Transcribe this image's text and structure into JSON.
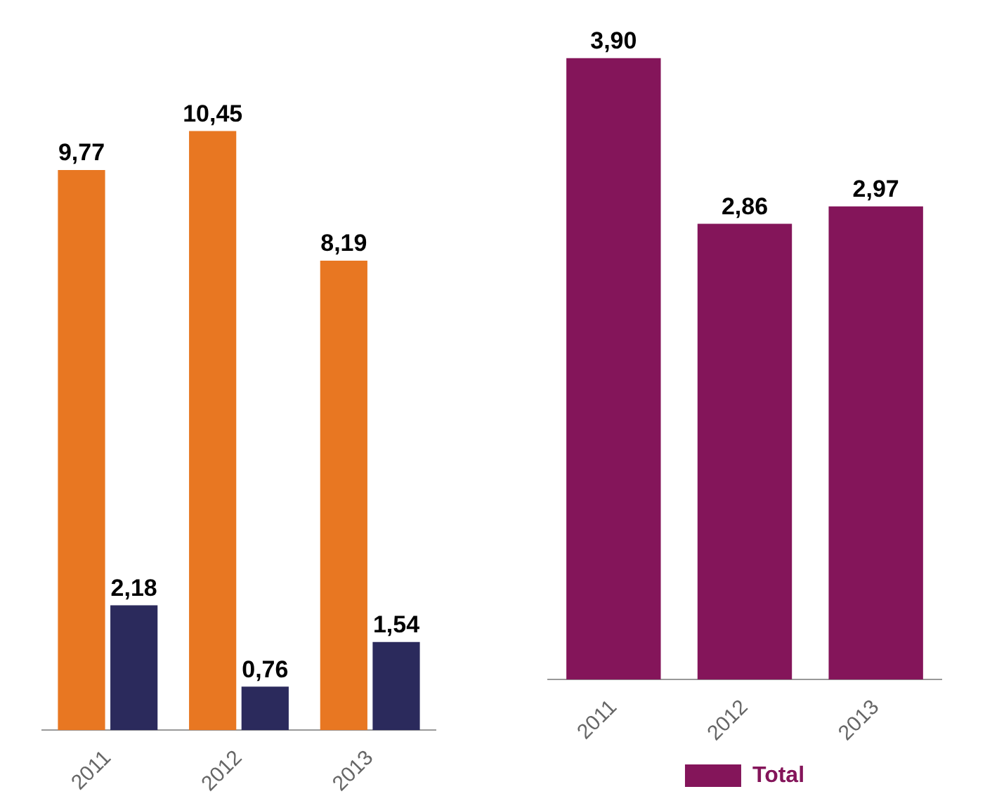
{
  "chart_data": [
    {
      "type": "bar",
      "categories": [
        "2011",
        "2012",
        "2013"
      ],
      "series": [
        {
          "color": "#e87722",
          "values": [
            9.77,
            10.45,
            8.19
          ],
          "value_labels": [
            "9,77",
            "10,45",
            "8,19"
          ]
        },
        {
          "color": "#2b2a5c",
          "values": [
            2.18,
            0.76,
            1.54
          ],
          "value_labels": [
            "2,18",
            "0,76",
            "1,54"
          ]
        }
      ],
      "legend": false
    },
    {
      "type": "bar",
      "categories": [
        "2011",
        "2012",
        "2013"
      ],
      "series": [
        {
          "name": "Total",
          "color": "#84155a",
          "values": [
            3.9,
            2.86,
            2.97
          ],
          "value_labels": [
            "3,90",
            "2,86",
            "2,97"
          ]
        }
      ],
      "legend": "bottom"
    }
  ]
}
